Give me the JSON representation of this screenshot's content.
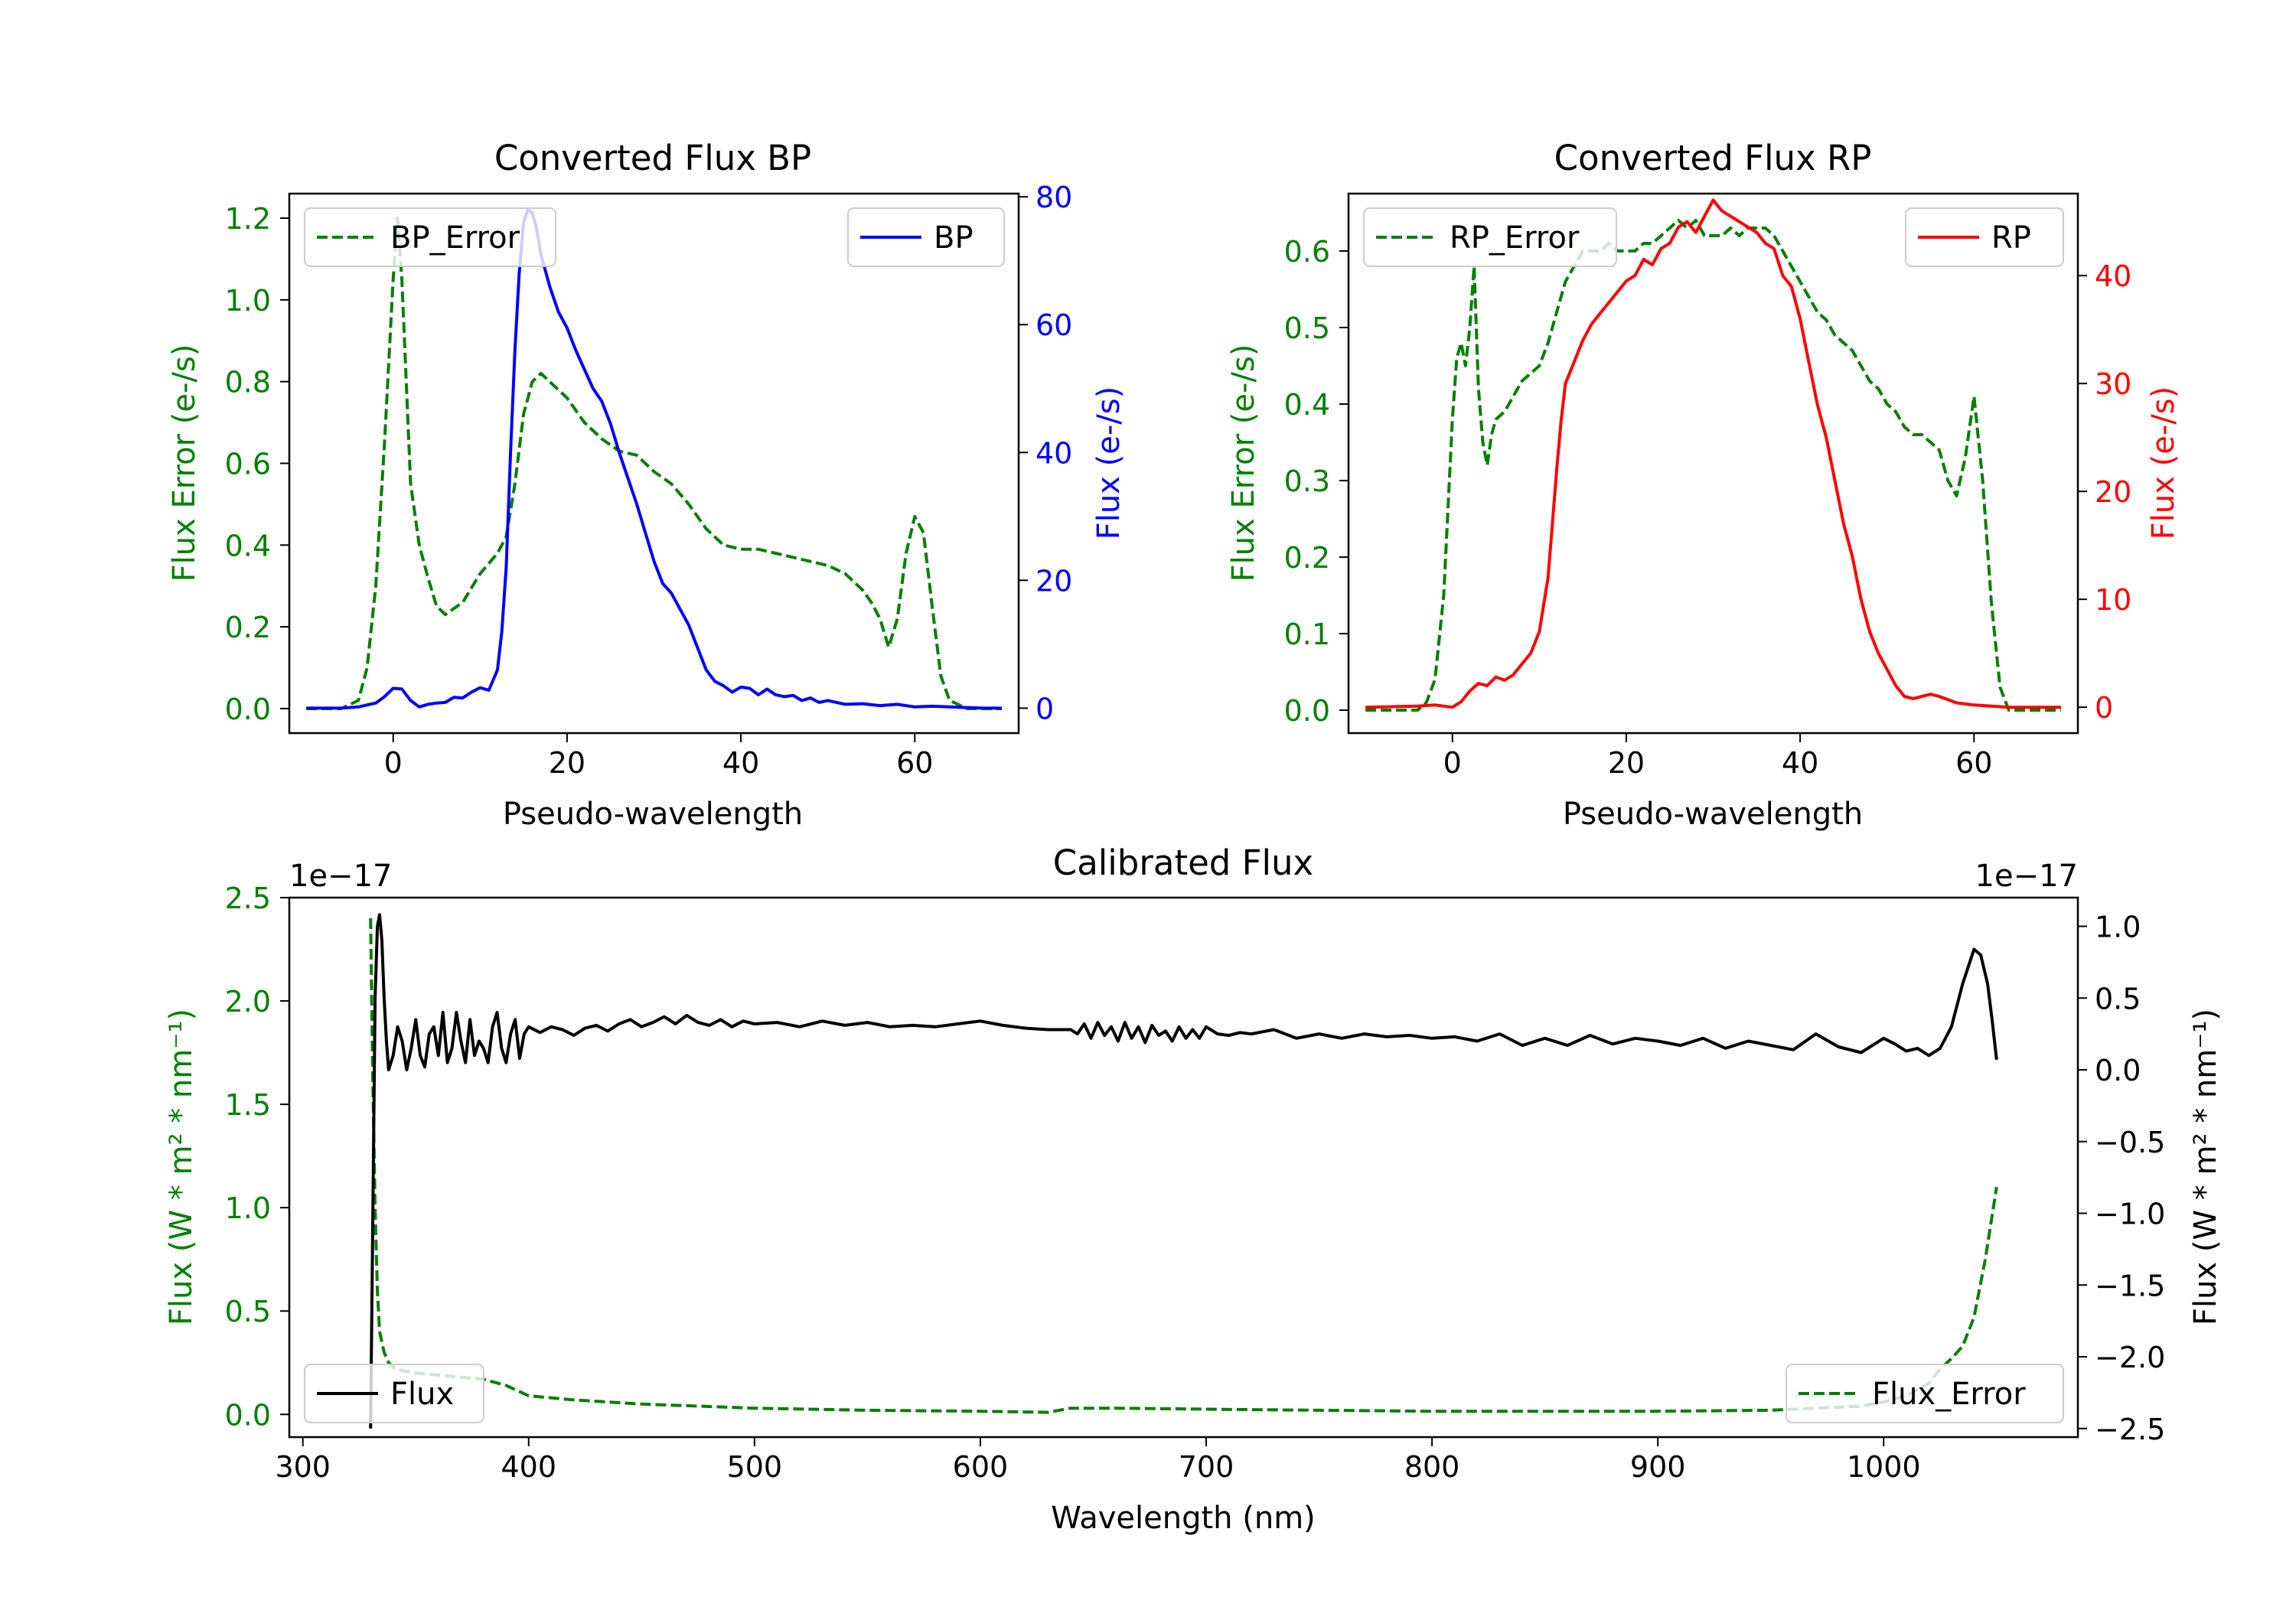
{
  "colors": {
    "green": "#008000",
    "blue": "#0000ff",
    "red": "#ff0000",
    "black": "#000000"
  },
  "chart_data": [
    {
      "id": "bp",
      "type": "line",
      "title": "Converted Flux BP",
      "xlabel": "Pseudo-wavelength",
      "ylabel_left": "Flux Error (e-/s)",
      "ylabel_right": "Flux (e-/s)",
      "xlim": [
        -11.95,
        71.95
      ],
      "ylim_left": [
        -0.06,
        1.26
      ],
      "ylim_right": [
        -3.9,
        80.5
      ],
      "xticks": [
        0,
        20,
        40,
        60
      ],
      "yticks_left": [
        0.0,
        0.2,
        0.4,
        0.6,
        0.8,
        1.0,
        1.2
      ],
      "yticks_right": [
        0,
        20,
        40,
        60,
        80
      ],
      "series": [
        {
          "name": "BP_Error",
          "axis": "left",
          "style": "dashed",
          "color": "green",
          "legend": "upper left",
          "x": [
            -10,
            -6,
            -4,
            -3,
            -2,
            -1,
            0,
            0.5,
            1,
            1.5,
            2,
            3,
            4,
            5,
            6,
            8,
            10,
            12,
            13,
            14,
            15,
            16,
            17,
            18,
            20,
            22,
            24,
            26,
            28,
            30,
            32,
            34,
            36,
            38,
            40,
            42,
            44,
            46,
            48,
            50,
            52,
            54,
            55,
            56,
            57,
            58,
            59,
            60,
            61,
            62,
            63,
            64,
            66,
            68,
            70
          ],
          "y": [
            0.0,
            0.0,
            0.02,
            0.1,
            0.3,
            0.65,
            1.05,
            1.2,
            1.05,
            0.8,
            0.55,
            0.4,
            0.32,
            0.25,
            0.23,
            0.26,
            0.33,
            0.38,
            0.42,
            0.55,
            0.72,
            0.8,
            0.82,
            0.8,
            0.76,
            0.7,
            0.66,
            0.63,
            0.62,
            0.58,
            0.55,
            0.5,
            0.44,
            0.4,
            0.39,
            0.39,
            0.38,
            0.37,
            0.36,
            0.35,
            0.33,
            0.29,
            0.26,
            0.22,
            0.15,
            0.22,
            0.38,
            0.47,
            0.43,
            0.25,
            0.08,
            0.02,
            0.0,
            0.0,
            0.0
          ]
        },
        {
          "name": "BP",
          "axis": "right",
          "style": "solid",
          "color": "blue",
          "legend": "upper right",
          "x": [
            -10,
            -6,
            -4,
            -2,
            -1,
            0,
            1,
            2,
            3,
            4,
            5,
            6,
            7,
            8,
            9,
            10,
            11,
            12,
            12.5,
            13,
            13.5,
            14,
            14.5,
            15,
            15.5,
            16,
            16.5,
            17,
            18,
            19,
            20,
            21,
            22,
            23,
            24,
            25,
            26,
            27,
            28,
            29,
            30,
            31,
            32,
            33,
            34,
            35,
            36,
            37,
            38,
            39,
            40,
            41,
            42,
            43,
            44,
            45,
            46,
            47,
            48,
            49,
            50,
            52,
            54,
            56,
            58,
            60,
            62,
            64,
            66,
            68,
            70
          ],
          "y": [
            0,
            0,
            0.2,
            0.8,
            1.8,
            3.1,
            3.0,
            1.2,
            0.2,
            0.6,
            0.8,
            0.9,
            1.7,
            1.6,
            2.5,
            3.2,
            2.8,
            6.0,
            12.0,
            22.0,
            40.0,
            56.0,
            68.0,
            76.0,
            78.0,
            77.5,
            75.0,
            71.0,
            66.0,
            62.0,
            59.5,
            56.0,
            53.0,
            50.0,
            48.0,
            44.5,
            40.0,
            36.0,
            32.0,
            27.5,
            23.0,
            19.5,
            18.0,
            15.5,
            13.0,
            9.5,
            6.0,
            4.2,
            3.5,
            2.5,
            3.3,
            3.1,
            2.1,
            3.0,
            2.1,
            1.8,
            2.0,
            1.2,
            1.6,
            0.9,
            1.2,
            0.6,
            0.7,
            0.4,
            0.6,
            0.2,
            0.3,
            0.2,
            0.1,
            0.0,
            0.0
          ]
        }
      ]
    },
    {
      "id": "rp",
      "type": "line",
      "title": "Converted Flux RP",
      "xlabel": "Pseudo-wavelength",
      "ylabel_left": "Flux Error (e-/s)",
      "ylabel_right": "Flux (e-/s)",
      "xlim": [
        -11.95,
        71.95
      ],
      "ylim_left": [
        -0.03,
        0.675
      ],
      "ylim_right": [
        -2.4,
        47.6
      ],
      "xticks": [
        0,
        20,
        40,
        60
      ],
      "yticks_left": [
        0.0,
        0.1,
        0.2,
        0.3,
        0.4,
        0.5,
        0.6
      ],
      "yticks_right": [
        0,
        10,
        20,
        30,
        40
      ],
      "series": [
        {
          "name": "RP_Error",
          "axis": "left",
          "style": "dashed",
          "color": "green",
          "legend": "upper left",
          "x": [
            -10,
            -6,
            -4,
            -3,
            -2,
            -1,
            0,
            0.5,
            1,
            1.5,
            2,
            2.5,
            3,
            3.5,
            4,
            4.5,
            5,
            6,
            7,
            8,
            9,
            10,
            11,
            12,
            13,
            14,
            15,
            16,
            17,
            18,
            19,
            20,
            21,
            22,
            23,
            24,
            25,
            26,
            27,
            28,
            29,
            30,
            31,
            32,
            33,
            34,
            35,
            36,
            37,
            38,
            39,
            40,
            41,
            42,
            43,
            44,
            45,
            46,
            47,
            48,
            49,
            50,
            51,
            52,
            53,
            54,
            55,
            56,
            57,
            58,
            59,
            60,
            61,
            62,
            63,
            64,
            66,
            68,
            70
          ],
          "y": [
            0.0,
            0.0,
            0.0,
            0.01,
            0.04,
            0.15,
            0.38,
            0.46,
            0.48,
            0.45,
            0.5,
            0.58,
            0.42,
            0.35,
            0.32,
            0.36,
            0.38,
            0.39,
            0.41,
            0.43,
            0.44,
            0.45,
            0.48,
            0.52,
            0.56,
            0.58,
            0.6,
            0.6,
            0.6,
            0.61,
            0.6,
            0.6,
            0.6,
            0.61,
            0.61,
            0.62,
            0.63,
            0.64,
            0.63,
            0.64,
            0.62,
            0.62,
            0.62,
            0.63,
            0.62,
            0.63,
            0.63,
            0.63,
            0.62,
            0.6,
            0.58,
            0.56,
            0.54,
            0.52,
            0.51,
            0.49,
            0.48,
            0.47,
            0.45,
            0.43,
            0.42,
            0.4,
            0.39,
            0.37,
            0.36,
            0.36,
            0.35,
            0.34,
            0.3,
            0.28,
            0.33,
            0.41,
            0.3,
            0.14,
            0.03,
            0.0,
            0.0,
            0.0,
            0.0
          ]
        },
        {
          "name": "RP",
          "axis": "right",
          "style": "solid",
          "color": "red",
          "legend": "upper right",
          "x": [
            -10,
            -4,
            -2,
            0,
            1,
            2,
            3,
            4,
            5,
            6,
            7,
            8,
            9,
            10,
            11,
            11.5,
            12,
            12.5,
            13,
            14,
            15,
            16,
            17,
            18,
            19,
            20,
            21,
            22,
            23,
            24,
            25,
            26,
            27,
            28,
            29,
            30,
            31,
            32,
            33,
            34,
            35,
            36,
            37,
            38,
            39,
            40,
            41,
            42,
            43,
            44,
            45,
            46,
            47,
            48,
            49,
            50,
            51,
            52,
            53,
            54,
            55,
            56,
            57,
            58,
            60,
            62,
            64,
            66,
            68,
            70
          ],
          "y": [
            0,
            0.1,
            0.2,
            0,
            0.5,
            1.5,
            2.2,
            2.0,
            2.8,
            2.5,
            3.0,
            4.0,
            5.0,
            7.0,
            12.0,
            17.0,
            22.0,
            26.5,
            30.0,
            32.0,
            34.0,
            35.5,
            36.5,
            37.5,
            38.5,
            39.5,
            40.0,
            41.5,
            41.0,
            42.5,
            43.0,
            44.5,
            45.0,
            44.0,
            45.5,
            47.0,
            46.0,
            45.5,
            45.0,
            44.5,
            44.0,
            43.0,
            42.5,
            40.0,
            39.0,
            36.0,
            32.0,
            28.0,
            25.0,
            21.0,
            17.0,
            14.0,
            10.0,
            7.0,
            5.0,
            3.5,
            2.0,
            1.0,
            0.8,
            1.0,
            1.2,
            1.0,
            0.7,
            0.4,
            0.2,
            0.1,
            0.0,
            0.0,
            0.0,
            0.0
          ]
        }
      ]
    },
    {
      "id": "cal",
      "type": "line",
      "title": "Calibrated Flux",
      "xlabel": "Wavelength (nm)",
      "ylabel_left": "Flux (W * m² * nm⁻¹)",
      "ylabel_right": "Flux (W * m² * nm⁻¹)",
      "offset_left": "1e−17",
      "offset_right": "1e−17",
      "xlim": [
        294,
        1086
      ],
      "ylim_left": [
        -0.11,
        2.5
      ],
      "ylim_right": [
        -2.56,
        1.2
      ],
      "xticks": [
        300,
        400,
        500,
        600,
        700,
        800,
        900,
        1000
      ],
      "yticks_left": [
        0.0,
        0.5,
        1.0,
        1.5,
        2.0,
        2.5
      ],
      "yticks_right": [
        -2.5,
        -2.0,
        -1.5,
        -1.0,
        -0.5,
        0.0,
        0.5,
        1.0
      ],
      "series": [
        {
          "name": "Flux_Error",
          "axis": "left",
          "style": "dashed",
          "color": "green",
          "legend": "lower right",
          "x": [
            330,
            331,
            332,
            333,
            334,
            336,
            338,
            341,
            345,
            350,
            360,
            370,
            380,
            390,
            400,
            420,
            450,
            500,
            550,
            600,
            630,
            640,
            660,
            700,
            750,
            800,
            850,
            900,
            950,
            990,
            1000,
            1010,
            1020,
            1025,
            1030,
            1035,
            1040,
            1045,
            1050
          ],
          "y": [
            2.4,
            1.6,
            1.0,
            0.6,
            0.4,
            0.3,
            0.25,
            0.22,
            0.21,
            0.2,
            0.19,
            0.18,
            0.17,
            0.14,
            0.09,
            0.07,
            0.05,
            0.03,
            0.02,
            0.015,
            0.01,
            0.03,
            0.03,
            0.025,
            0.02,
            0.015,
            0.015,
            0.015,
            0.02,
            0.04,
            0.06,
            0.09,
            0.15,
            0.22,
            0.27,
            0.33,
            0.47,
            0.75,
            1.1
          ]
        },
        {
          "name": "Flux",
          "axis": "right",
          "style": "solid",
          "color": "black",
          "legend": "lower left",
          "x": [
            330,
            331,
            332,
            333,
            334,
            335,
            336,
            337,
            338,
            340,
            342,
            344,
            346,
            348,
            350,
            352,
            354,
            356,
            358,
            360,
            362,
            364,
            366,
            368,
            370,
            372,
            374,
            376,
            378,
            380,
            382,
            384,
            386,
            388,
            390,
            392,
            394,
            396,
            398,
            400,
            405,
            410,
            415,
            420,
            425,
            430,
            435,
            440,
            445,
            450,
            455,
            460,
            465,
            470,
            475,
            480,
            485,
            490,
            495,
            500,
            510,
            520,
            530,
            540,
            550,
            560,
            570,
            580,
            590,
            600,
            610,
            620,
            630,
            640,
            643,
            646,
            649,
            652,
            655,
            658,
            661,
            664,
            667,
            670,
            673,
            676,
            679,
            682,
            685,
            688,
            691,
            694,
            697,
            700,
            705,
            710,
            715,
            720,
            730,
            740,
            750,
            760,
            770,
            780,
            790,
            800,
            810,
            820,
            830,
            840,
            850,
            860,
            870,
            880,
            890,
            900,
            910,
            920,
            930,
            940,
            950,
            960,
            970,
            980,
            990,
            1000,
            1005,
            1010,
            1015,
            1020,
            1025,
            1030,
            1035,
            1040,
            1043,
            1046,
            1048,
            1050
          ],
          "y": [
            -2.5,
            -1.0,
            0.5,
            1.0,
            1.08,
            0.9,
            0.5,
            0.2,
            0.0,
            0.1,
            0.3,
            0.2,
            0.0,
            0.15,
            0.35,
            0.1,
            0.02,
            0.25,
            0.3,
            0.1,
            0.4,
            0.05,
            0.15,
            0.4,
            0.2,
            0.05,
            0.35,
            0.1,
            0.2,
            0.15,
            0.05,
            0.3,
            0.4,
            0.15,
            0.05,
            0.25,
            0.35,
            0.08,
            0.25,
            0.3,
            0.26,
            0.3,
            0.28,
            0.24,
            0.29,
            0.31,
            0.27,
            0.32,
            0.35,
            0.3,
            0.33,
            0.37,
            0.32,
            0.38,
            0.33,
            0.31,
            0.35,
            0.3,
            0.34,
            0.32,
            0.33,
            0.3,
            0.34,
            0.31,
            0.33,
            0.3,
            0.31,
            0.3,
            0.32,
            0.34,
            0.31,
            0.29,
            0.28,
            0.28,
            0.25,
            0.32,
            0.22,
            0.33,
            0.24,
            0.3,
            0.2,
            0.33,
            0.22,
            0.3,
            0.19,
            0.31,
            0.24,
            0.27,
            0.2,
            0.3,
            0.22,
            0.28,
            0.22,
            0.3,
            0.25,
            0.24,
            0.26,
            0.25,
            0.28,
            0.22,
            0.25,
            0.22,
            0.25,
            0.23,
            0.24,
            0.22,
            0.23,
            0.2,
            0.25,
            0.17,
            0.22,
            0.17,
            0.24,
            0.18,
            0.22,
            0.2,
            0.17,
            0.22,
            0.15,
            0.2,
            0.17,
            0.14,
            0.25,
            0.16,
            0.12,
            0.22,
            0.18,
            0.13,
            0.15,
            0.1,
            0.15,
            0.3,
            0.6,
            0.84,
            0.8,
            0.6,
            0.35,
            0.07
          ]
        }
      ]
    }
  ]
}
